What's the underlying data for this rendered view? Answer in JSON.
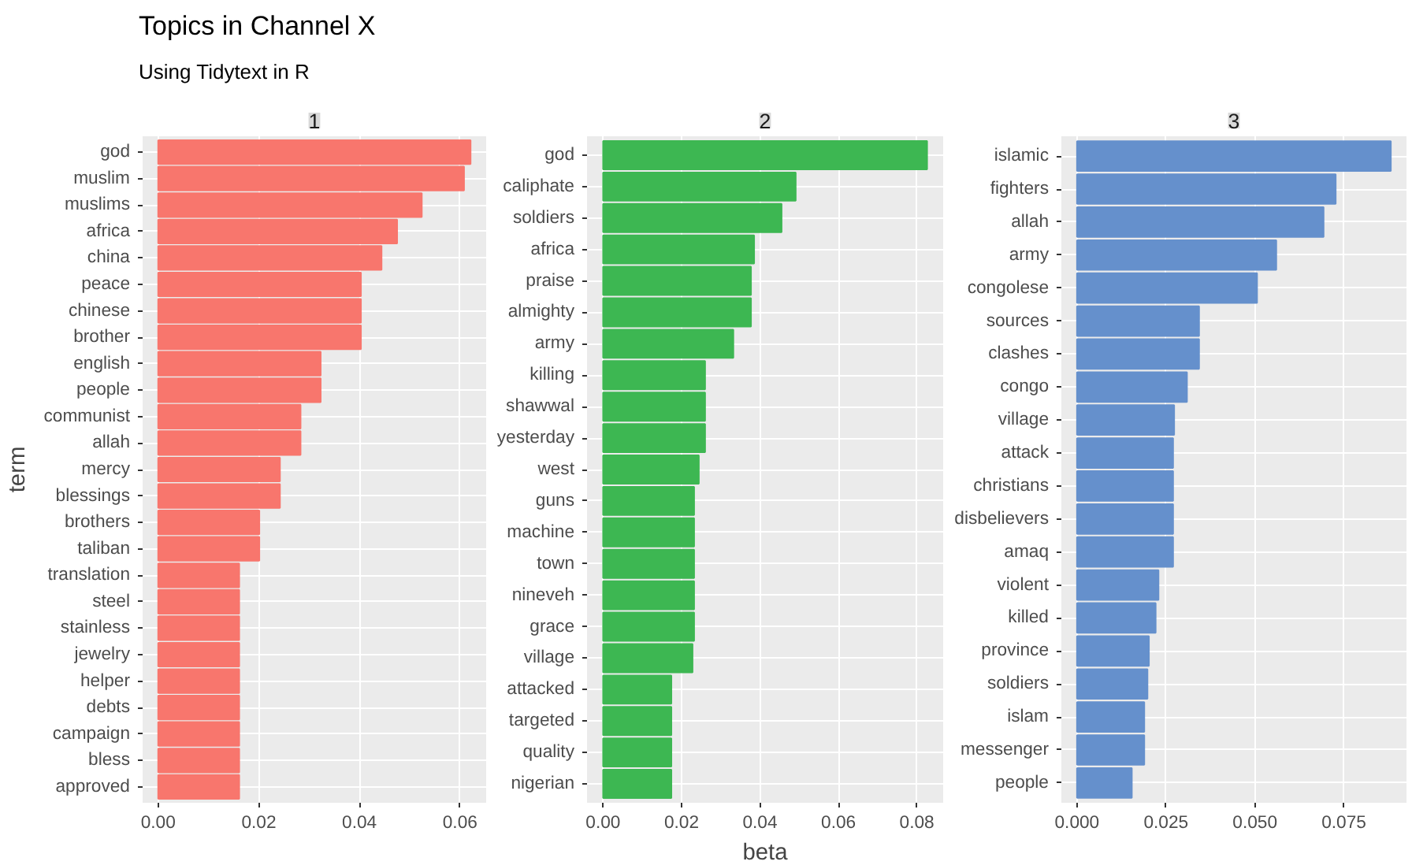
{
  "chart_data": [
    {
      "type": "bar",
      "orientation": "horizontal",
      "title": "Topics in Channel X",
      "subtitle": "Using Tidytext in R",
      "ylabel": "term",
      "annotations": [
        "1"
      ],
      "grid": true,
      "color": "#f8766d",
      "categories": [
        "god",
        "muslim",
        "muslims",
        "africa",
        "china",
        "peace",
        "chinese",
        "brother",
        "english",
        "people",
        "communist",
        "allah",
        "mercy",
        "blessings",
        "brothers",
        "taliban",
        "translation",
        "steel",
        "stainless",
        "jewelry",
        "helper",
        "debts",
        "campaign",
        "bless",
        "approved"
      ],
      "values": [
        0.0621,
        0.0608,
        0.0524,
        0.0475,
        0.0444,
        0.0403,
        0.0403,
        0.0403,
        0.0323,
        0.0323,
        0.0283,
        0.0283,
        0.0242,
        0.0242,
        0.0201,
        0.0201,
        0.0161,
        0.0161,
        0.0161,
        0.0161,
        0.0161,
        0.0161,
        0.0161,
        0.0161,
        0.0161
      ],
      "xlim": [
        -0.0031,
        0.0652
      ],
      "xticks": [
        {
          "value": 0,
          "label": "0.00"
        },
        {
          "value": 0.02,
          "label": "0.02"
        },
        {
          "value": 0.04,
          "label": "0.04"
        },
        {
          "value": 0.06,
          "label": "0.06"
        }
      ]
    },
    {
      "type": "bar",
      "orientation": "horizontal",
      "xlabel": "beta",
      "annotations": [
        "2"
      ],
      "grid": true,
      "color": "#3db752",
      "categories": [
        "god",
        "caliphate",
        "soldiers",
        "africa",
        "praise",
        "almighty",
        "army",
        "killing",
        "shawwal",
        "yesterday",
        "west",
        "guns",
        "machine",
        "town",
        "nineveh",
        "grace",
        "village",
        "attacked",
        "targeted",
        "quality",
        "nigerian"
      ],
      "values": [
        0.0826,
        0.0491,
        0.0455,
        0.0385,
        0.0377,
        0.0377,
        0.0332,
        0.026,
        0.026,
        0.026,
        0.0244,
        0.0232,
        0.0232,
        0.0232,
        0.0232,
        0.0232,
        0.0228,
        0.0174,
        0.0174,
        0.0174,
        0.0174
      ],
      "xlim": [
        -0.0041,
        0.0867
      ],
      "xticks": [
        {
          "value": 0,
          "label": "0.00"
        },
        {
          "value": 0.02,
          "label": "0.02"
        },
        {
          "value": 0.04,
          "label": "0.04"
        },
        {
          "value": 0.06,
          "label": "0.06"
        },
        {
          "value": 0.08,
          "label": "0.08"
        }
      ]
    },
    {
      "type": "bar",
      "orientation": "horizontal",
      "annotations": [
        "3"
      ],
      "grid": true,
      "color": "#6590cc",
      "categories": [
        "islamic",
        "fighters",
        "allah",
        "army",
        "congolese",
        "sources",
        "clashes",
        "congo",
        "village",
        "attack",
        "christians",
        "disbelievers",
        "amaq",
        "violent",
        "killed",
        "province",
        "soldiers",
        "islam",
        "messenger",
        "people"
      ],
      "values": [
        0.0882,
        0.0727,
        0.0693,
        0.056,
        0.0506,
        0.0343,
        0.0343,
        0.0309,
        0.0273,
        0.027,
        0.027,
        0.027,
        0.027,
        0.0229,
        0.0221,
        0.0202,
        0.0198,
        0.0189,
        0.0189,
        0.0154
      ],
      "xlim": [
        -0.0044,
        0.0926
      ],
      "xticks": [
        {
          "value": 0,
          "label": "0.000"
        },
        {
          "value": 0.025,
          "label": "0.025"
        },
        {
          "value": 0.05,
          "label": "0.050"
        },
        {
          "value": 0.075,
          "label": "0.075"
        }
      ]
    }
  ]
}
